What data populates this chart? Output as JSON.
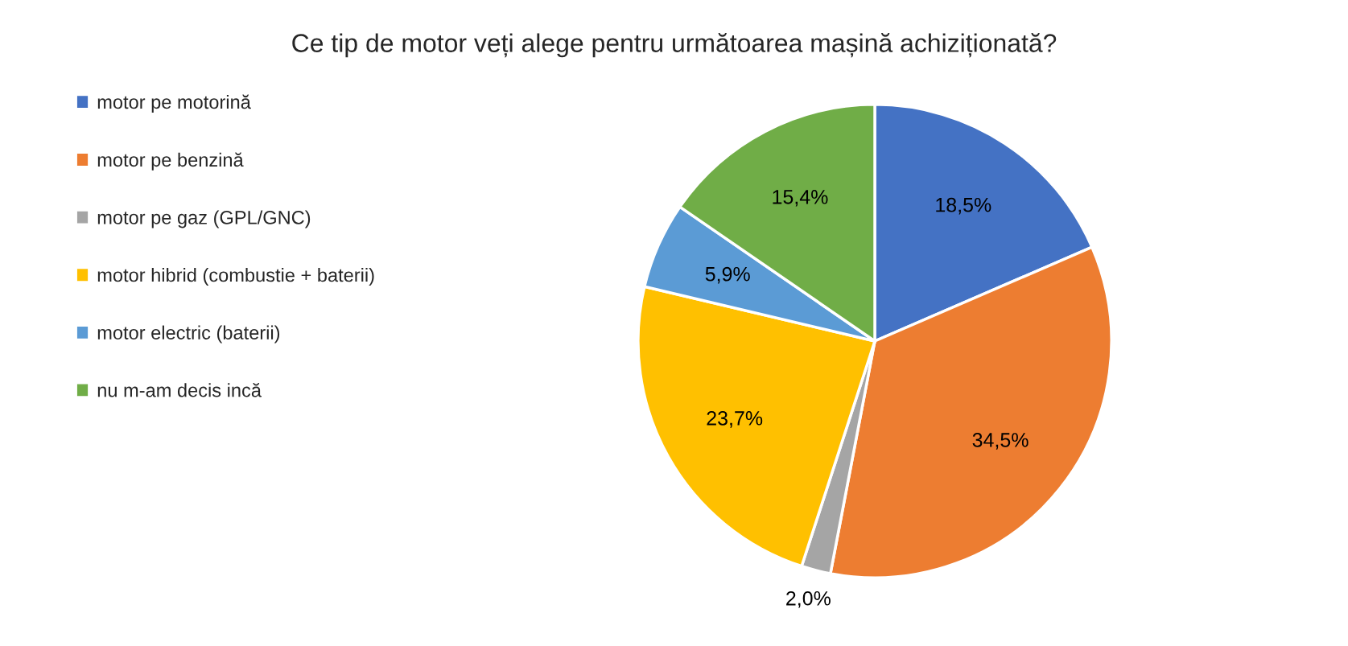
{
  "chart_data": {
    "type": "pie",
    "title": "Ce tip de motor veți alege pentru următoarea mașină achiziționată?",
    "categories": [
      "motor pe motorină",
      "motor pe benzină",
      "motor pe gaz (GPL/GNC)",
      "motor hibrid (combustie + baterii)",
      "motor electric (baterii)",
      "nu m-am decis incă"
    ],
    "values": [
      18.5,
      34.5,
      2.0,
      23.7,
      5.9,
      15.4
    ],
    "value_labels": [
      "18,5%",
      "34,5%",
      "2,0%",
      "23,7%",
      "5,9%",
      "15,4%"
    ],
    "colors": [
      "#4472c4",
      "#ed7d31",
      "#a5a5a5",
      "#ffc000",
      "#5b9bd5",
      "#70ad47"
    ],
    "legend": "left"
  }
}
